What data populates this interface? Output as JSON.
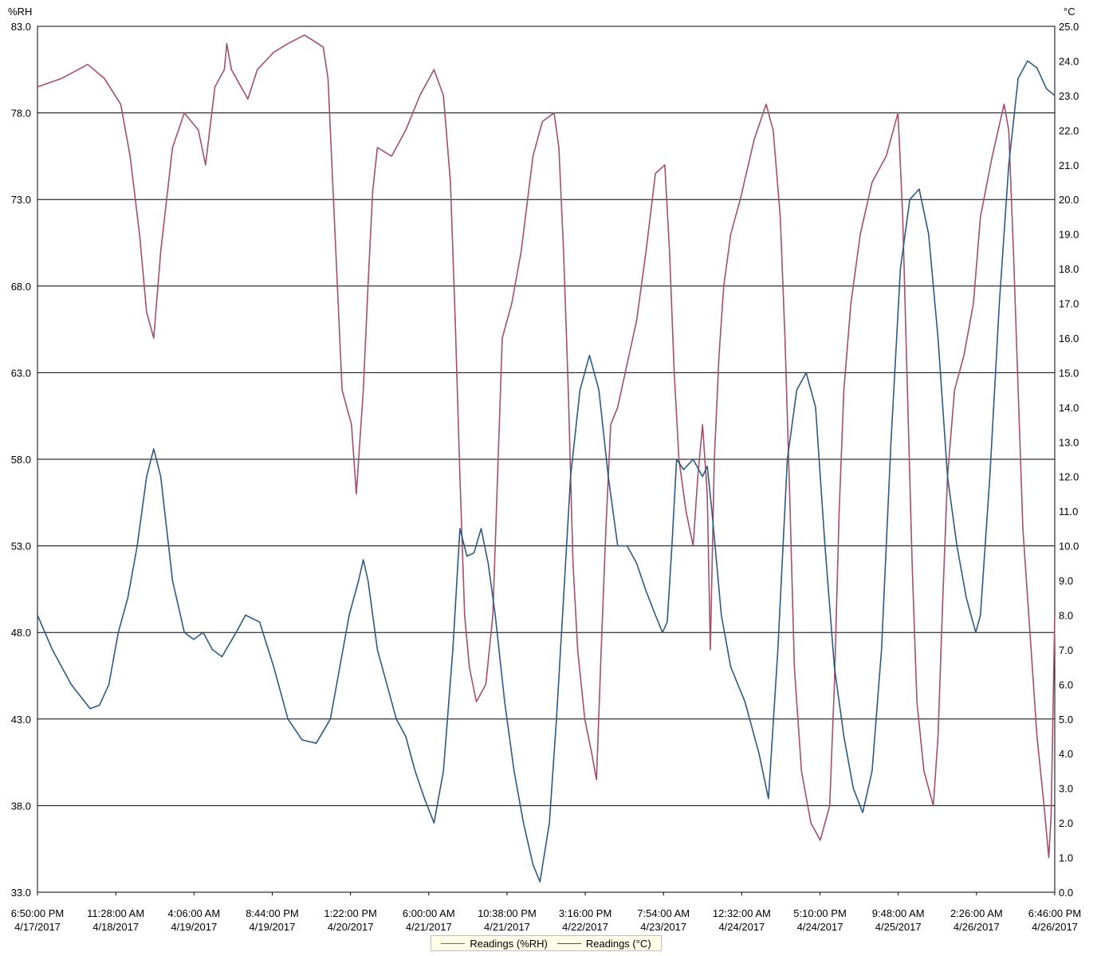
{
  "chart_data": {
    "type": "line",
    "y_left": {
      "unit_label": "%RH",
      "range": [
        33.0,
        83.0
      ],
      "ticks": [
        "83.0",
        "78.0",
        "73.0",
        "68.0",
        "63.0",
        "58.0",
        "53.0",
        "48.0",
        "43.0",
        "38.0",
        "33.0"
      ]
    },
    "y_right": {
      "unit_label": "°C",
      "range": [
        0.0,
        25.0
      ],
      "ticks": [
        "25.0",
        "24.0",
        "23.0",
        "22.0",
        "21.0",
        "20.0",
        "19.0",
        "18.0",
        "17.0",
        "16.0",
        "15.0",
        "14.0",
        "13.0",
        "12.0",
        "11.0",
        "10.0",
        "9.0",
        "8.0",
        "7.0",
        "6.0",
        "5.0",
        "4.0",
        "3.0",
        "2.0",
        "1.0",
        "0.0"
      ]
    },
    "x_range": [
      "2017-04-17 18:50",
      "2017-04-26 18:46"
    ],
    "x_ticks": [
      {
        "time": "6:50:00 PM",
        "date": "4/17/2017"
      },
      {
        "time": "11:28:00 AM",
        "date": "4/18/2017"
      },
      {
        "time": "4:06:00 AM",
        "date": "4/19/2017"
      },
      {
        "time": "8:44:00 PM",
        "date": "4/19/2017"
      },
      {
        "time": "1:22:00 PM",
        "date": "4/20/2017"
      },
      {
        "time": "6:00:00 AM",
        "date": "4/21/2017"
      },
      {
        "time": "10:38:00 PM",
        "date": "4/21/2017"
      },
      {
        "time": "3:16:00 PM",
        "date": "4/22/2017"
      },
      {
        "time": "7:54:00 AM",
        "date": "4/23/2017"
      },
      {
        "time": "12:32:00 AM",
        "date": "4/24/2017"
      },
      {
        "time": "5:10:00 PM",
        "date": "4/24/2017"
      },
      {
        "time": "9:48:00 AM",
        "date": "4/25/2017"
      },
      {
        "time": "2:26:00 AM",
        "date": "4/26/2017"
      },
      {
        "time": "6:46:00 PM",
        "date": "4/26/2017"
      }
    ],
    "grid": "horizontal",
    "legend": "bottom-center",
    "series": [
      {
        "name": "Readings (%RH)",
        "axis": "left",
        "color": "#a34f6e",
        "points": [
          [
            "2017-04-17 18:50",
            79.5
          ],
          [
            "2017-04-18 00:00",
            80.0
          ],
          [
            "2017-04-18 05:30",
            80.8
          ],
          [
            "2017-04-18 09:00",
            80.0
          ],
          [
            "2017-04-18 12:30",
            78.5
          ],
          [
            "2017-04-18 14:30",
            75.5
          ],
          [
            "2017-04-18 16:30",
            71.0
          ],
          [
            "2017-04-18 18:00",
            66.5
          ],
          [
            "2017-04-18 19:30",
            65.0
          ],
          [
            "2017-04-18 21:00",
            70.0
          ],
          [
            "2017-04-18 23:30",
            76.0
          ],
          [
            "2017-04-19 02:00",
            78.0
          ],
          [
            "2017-04-19 05:00",
            77.0
          ],
          [
            "2017-04-19 06:30",
            75.0
          ],
          [
            "2017-04-19 08:30",
            79.5
          ],
          [
            "2017-04-19 10:30",
            80.5
          ],
          [
            "2017-04-19 11:00",
            82.0
          ],
          [
            "2017-04-19 12:00",
            80.5
          ],
          [
            "2017-04-19 15:30",
            78.8
          ],
          [
            "2017-04-19 17:30",
            80.5
          ],
          [
            "2017-04-19 21:00",
            81.5
          ],
          [
            "2017-04-20 00:00",
            82.0
          ],
          [
            "2017-04-20 03:30",
            82.5
          ],
          [
            "2017-04-20 07:30",
            81.8
          ],
          [
            "2017-04-20 08:30",
            80.0
          ],
          [
            "2017-04-20 09:30",
            74.0
          ],
          [
            "2017-04-20 10:30",
            68.0
          ],
          [
            "2017-04-20 11:30",
            62.0
          ],
          [
            "2017-04-20 13:30",
            60.0
          ],
          [
            "2017-04-20 14:30",
            56.0
          ],
          [
            "2017-04-20 16:00",
            62.0
          ],
          [
            "2017-04-20 17:00",
            68.0
          ],
          [
            "2017-04-20 18:00",
            73.5
          ],
          [
            "2017-04-20 19:00",
            76.0
          ],
          [
            "2017-04-20 22:00",
            75.5
          ],
          [
            "2017-04-21 01:00",
            77.0
          ],
          [
            "2017-04-21 04:00",
            79.0
          ],
          [
            "2017-04-21 07:00",
            80.5
          ],
          [
            "2017-04-21 09:00",
            79.0
          ],
          [
            "2017-04-21 10:30",
            74.0
          ],
          [
            "2017-04-21 11:30",
            66.0
          ],
          [
            "2017-04-21 12:30",
            57.0
          ],
          [
            "2017-04-21 13:30",
            49.0
          ],
          [
            "2017-04-21 14:30",
            46.0
          ],
          [
            "2017-04-21 16:00",
            44.0
          ],
          [
            "2017-04-21 18:00",
            45.0
          ],
          [
            "2017-04-21 19:30",
            49.0
          ],
          [
            "2017-04-21 20:30",
            57.0
          ],
          [
            "2017-04-21 21:30",
            65.0
          ],
          [
            "2017-04-21 23:30",
            67.0
          ],
          [
            "2017-04-22 01:30",
            70.0
          ],
          [
            "2017-04-22 04:00",
            75.5
          ],
          [
            "2017-04-22 06:00",
            77.5
          ],
          [
            "2017-04-22 08:30",
            78.0
          ],
          [
            "2017-04-22 09:30",
            76.0
          ],
          [
            "2017-04-22 10:30",
            70.0
          ],
          [
            "2017-04-22 11:30",
            62.0
          ],
          [
            "2017-04-22 12:30",
            52.0
          ],
          [
            "2017-04-22 13:30",
            47.0
          ],
          [
            "2017-04-22 15:00",
            43.0
          ],
          [
            "2017-04-22 16:30",
            41.0
          ],
          [
            "2017-04-22 17:30",
            39.5
          ],
          [
            "2017-04-22 18:30",
            47.0
          ],
          [
            "2017-04-22 19:30",
            54.0
          ],
          [
            "2017-04-22 20:30",
            60.0
          ],
          [
            "2017-04-22 22:00",
            61.0
          ],
          [
            "2017-04-23 00:00",
            63.5
          ],
          [
            "2017-04-23 02:00",
            66.0
          ],
          [
            "2017-04-23 04:00",
            70.0
          ],
          [
            "2017-04-23 06:00",
            74.5
          ],
          [
            "2017-04-23 08:00",
            75.0
          ],
          [
            "2017-04-23 09:00",
            70.0
          ],
          [
            "2017-04-23 10:00",
            63.0
          ],
          [
            "2017-04-23 11:00",
            58.0
          ],
          [
            "2017-04-23 12:30",
            55.0
          ],
          [
            "2017-04-23 14:00",
            53.0
          ],
          [
            "2017-04-23 15:00",
            57.0
          ],
          [
            "2017-04-23 16:00",
            60.0
          ],
          [
            "2017-04-23 17:00",
            56.0
          ],
          [
            "2017-04-23 17:40",
            47.0
          ],
          [
            "2017-04-23 18:30",
            58.0
          ],
          [
            "2017-04-23 19:30",
            64.0
          ],
          [
            "2017-04-23 20:30",
            68.0
          ],
          [
            "2017-04-23 22:00",
            71.0
          ],
          [
            "2017-04-24 00:00",
            73.0
          ],
          [
            "2017-04-24 03:00",
            76.5
          ],
          [
            "2017-04-24 05:30",
            78.5
          ],
          [
            "2017-04-24 07:00",
            77.0
          ],
          [
            "2017-04-24 08:30",
            72.0
          ],
          [
            "2017-04-24 09:30",
            65.0
          ],
          [
            "2017-04-24 10:30",
            56.0
          ],
          [
            "2017-04-24 11:30",
            46.0
          ],
          [
            "2017-04-24 13:00",
            40.0
          ],
          [
            "2017-04-24 15:00",
            37.0
          ],
          [
            "2017-04-24 17:00",
            36.0
          ],
          [
            "2017-04-24 19:00",
            38.0
          ],
          [
            "2017-04-24 20:00",
            45.0
          ],
          [
            "2017-04-24 21:00",
            55.0
          ],
          [
            "2017-04-24 22:00",
            62.0
          ],
          [
            "2017-04-24 23:30",
            67.0
          ],
          [
            "2017-04-25 01:30",
            71.0
          ],
          [
            "2017-04-25 04:00",
            74.0
          ],
          [
            "2017-04-25 07:00",
            75.5
          ],
          [
            "2017-04-25 09:30",
            78.0
          ],
          [
            "2017-04-25 10:30",
            72.0
          ],
          [
            "2017-04-25 11:30",
            62.0
          ],
          [
            "2017-04-25 12:30",
            52.0
          ],
          [
            "2017-04-25 13:30",
            44.0
          ],
          [
            "2017-04-25 15:00",
            40.0
          ],
          [
            "2017-04-25 17:00",
            38.0
          ],
          [
            "2017-04-25 18:00",
            42.0
          ],
          [
            "2017-04-25 19:00",
            50.0
          ],
          [
            "2017-04-25 20:00",
            57.0
          ],
          [
            "2017-04-25 21:30",
            62.0
          ],
          [
            "2017-04-25 23:30",
            64.0
          ],
          [
            "2017-04-26 01:30",
            67.0
          ],
          [
            "2017-04-26 03:00",
            72.0
          ],
          [
            "2017-04-26 05:30",
            75.5
          ],
          [
            "2017-04-26 08:00",
            78.5
          ],
          [
            "2017-04-26 09:00",
            77.0
          ],
          [
            "2017-04-26 10:00",
            70.0
          ],
          [
            "2017-04-26 11:00",
            62.0
          ],
          [
            "2017-04-26 12:00",
            54.0
          ],
          [
            "2017-04-26 13:30",
            48.0
          ],
          [
            "2017-04-26 15:00",
            42.0
          ],
          [
            "2017-04-26 16:30",
            38.0
          ],
          [
            "2017-04-26 17:30",
            35.0
          ],
          [
            "2017-04-26 18:00",
            37.5
          ],
          [
            "2017-04-26 18:46",
            49.0
          ]
        ]
      },
      {
        "name": "Readings (°C)",
        "axis": "right",
        "color": "#2e5a82",
        "points": [
          [
            "2017-04-17 18:50",
            8.0
          ],
          [
            "2017-04-17 22:00",
            7.0
          ],
          [
            "2017-04-18 02:00",
            6.0
          ],
          [
            "2017-04-18 06:00",
            5.3
          ],
          [
            "2017-04-18 08:00",
            5.4
          ],
          [
            "2017-04-18 10:00",
            6.0
          ],
          [
            "2017-04-18 12:00",
            7.5
          ],
          [
            "2017-04-18 14:00",
            8.5
          ],
          [
            "2017-04-18 16:00",
            10.0
          ],
          [
            "2017-04-18 18:00",
            12.0
          ],
          [
            "2017-04-18 19:30",
            12.8
          ],
          [
            "2017-04-18 21:00",
            12.0
          ],
          [
            "2017-04-18 23:30",
            9.0
          ],
          [
            "2017-04-19 02:00",
            7.5
          ],
          [
            "2017-04-19 04:00",
            7.3
          ],
          [
            "2017-04-19 06:00",
            7.5
          ],
          [
            "2017-04-19 08:00",
            7.0
          ],
          [
            "2017-04-19 10:00",
            6.8
          ],
          [
            "2017-04-19 13:00",
            7.5
          ],
          [
            "2017-04-19 15:00",
            8.0
          ],
          [
            "2017-04-19 18:00",
            7.8
          ],
          [
            "2017-04-19 21:00",
            6.5
          ],
          [
            "2017-04-20 00:00",
            5.0
          ],
          [
            "2017-04-20 03:00",
            4.4
          ],
          [
            "2017-04-20 06:00",
            4.3
          ],
          [
            "2017-04-20 09:00",
            5.0
          ],
          [
            "2017-04-20 11:00",
            6.5
          ],
          [
            "2017-04-20 13:00",
            8.0
          ],
          [
            "2017-04-20 15:00",
            9.0
          ],
          [
            "2017-04-20 16:00",
            9.6
          ],
          [
            "2017-04-20 17:00",
            9.0
          ],
          [
            "2017-04-20 19:00",
            7.0
          ],
          [
            "2017-04-20 21:00",
            6.0
          ],
          [
            "2017-04-20 23:00",
            5.0
          ],
          [
            "2017-04-21 01:00",
            4.5
          ],
          [
            "2017-04-21 03:00",
            3.5
          ],
          [
            "2017-04-21 05:00",
            2.7
          ],
          [
            "2017-04-21 07:00",
            2.0
          ],
          [
            "2017-04-21 09:00",
            3.5
          ],
          [
            "2017-04-21 11:00",
            7.0
          ],
          [
            "2017-04-21 12:30",
            10.5
          ],
          [
            "2017-04-21 14:00",
            9.7
          ],
          [
            "2017-04-21 15:30",
            9.8
          ],
          [
            "2017-04-21 17:00",
            10.5
          ],
          [
            "2017-04-21 18:30",
            9.5
          ],
          [
            "2017-04-21 20:00",
            8.0
          ],
          [
            "2017-04-21 22:00",
            5.5
          ],
          [
            "2017-04-22 00:00",
            3.5
          ],
          [
            "2017-04-22 02:00",
            2.0
          ],
          [
            "2017-04-22 04:00",
            0.8
          ],
          [
            "2017-04-22 05:30",
            0.3
          ],
          [
            "2017-04-22 07:30",
            2.0
          ],
          [
            "2017-04-22 09:00",
            5.0
          ],
          [
            "2017-04-22 10:30",
            8.5
          ],
          [
            "2017-04-22 12:00",
            12.0
          ],
          [
            "2017-04-22 14:00",
            14.5
          ],
          [
            "2017-04-22 16:00",
            15.5
          ],
          [
            "2017-04-22 18:00",
            14.5
          ],
          [
            "2017-04-22 20:00",
            12.0
          ],
          [
            "2017-04-22 22:00",
            10.0
          ],
          [
            "2017-04-23 00:00",
            10.0
          ],
          [
            "2017-04-23 02:00",
            9.5
          ],
          [
            "2017-04-23 04:00",
            8.7
          ],
          [
            "2017-04-23 06:00",
            8.0
          ],
          [
            "2017-04-23 07:30",
            7.5
          ],
          [
            "2017-04-23 08:30",
            7.8
          ],
          [
            "2017-04-23 09:30",
            10.0
          ],
          [
            "2017-04-23 10:30",
            12.5
          ],
          [
            "2017-04-23 12:00",
            12.2
          ],
          [
            "2017-04-23 14:00",
            12.5
          ],
          [
            "2017-04-23 16:00",
            12.0
          ],
          [
            "2017-04-23 17:00",
            12.3
          ],
          [
            "2017-04-23 18:00",
            11.0
          ],
          [
            "2017-04-23 20:00",
            8.0
          ],
          [
            "2017-04-23 22:00",
            6.5
          ],
          [
            "2017-04-24 01:00",
            5.5
          ],
          [
            "2017-04-24 04:00",
            4.0
          ],
          [
            "2017-04-24 06:00",
            2.7
          ],
          [
            "2017-04-24 08:00",
            7.0
          ],
          [
            "2017-04-24 10:00",
            12.5
          ],
          [
            "2017-04-24 12:00",
            14.5
          ],
          [
            "2017-04-24 14:00",
            15.0
          ],
          [
            "2017-04-24 16:00",
            14.0
          ],
          [
            "2017-04-24 18:00",
            10.0
          ],
          [
            "2017-04-24 20:00",
            6.5
          ],
          [
            "2017-04-24 22:00",
            4.5
          ],
          [
            "2017-04-25 00:00",
            3.0
          ],
          [
            "2017-04-25 02:00",
            2.3
          ],
          [
            "2017-04-25 04:00",
            3.5
          ],
          [
            "2017-04-25 06:00",
            7.0
          ],
          [
            "2017-04-25 08:00",
            13.0
          ],
          [
            "2017-04-25 10:00",
            18.0
          ],
          [
            "2017-04-25 12:00",
            20.0
          ],
          [
            "2017-04-25 14:00",
            20.3
          ],
          [
            "2017-04-25 16:00",
            19.0
          ],
          [
            "2017-04-25 18:00",
            16.0
          ],
          [
            "2017-04-25 20:00",
            12.0
          ],
          [
            "2017-04-25 22:00",
            10.0
          ],
          [
            "2017-04-26 00:00",
            8.5
          ],
          [
            "2017-04-26 02:00",
            7.5
          ],
          [
            "2017-04-26 03:00",
            8.0
          ],
          [
            "2017-04-26 05:00",
            12.0
          ],
          [
            "2017-04-26 07:00",
            17.0
          ],
          [
            "2017-04-26 09:00",
            21.0
          ],
          [
            "2017-04-26 11:00",
            23.5
          ],
          [
            "2017-04-26 13:00",
            24.0
          ],
          [
            "2017-04-26 15:00",
            23.8
          ],
          [
            "2017-04-26 17:00",
            23.2
          ],
          [
            "2017-04-26 18:46",
            23.0
          ]
        ]
      }
    ]
  }
}
